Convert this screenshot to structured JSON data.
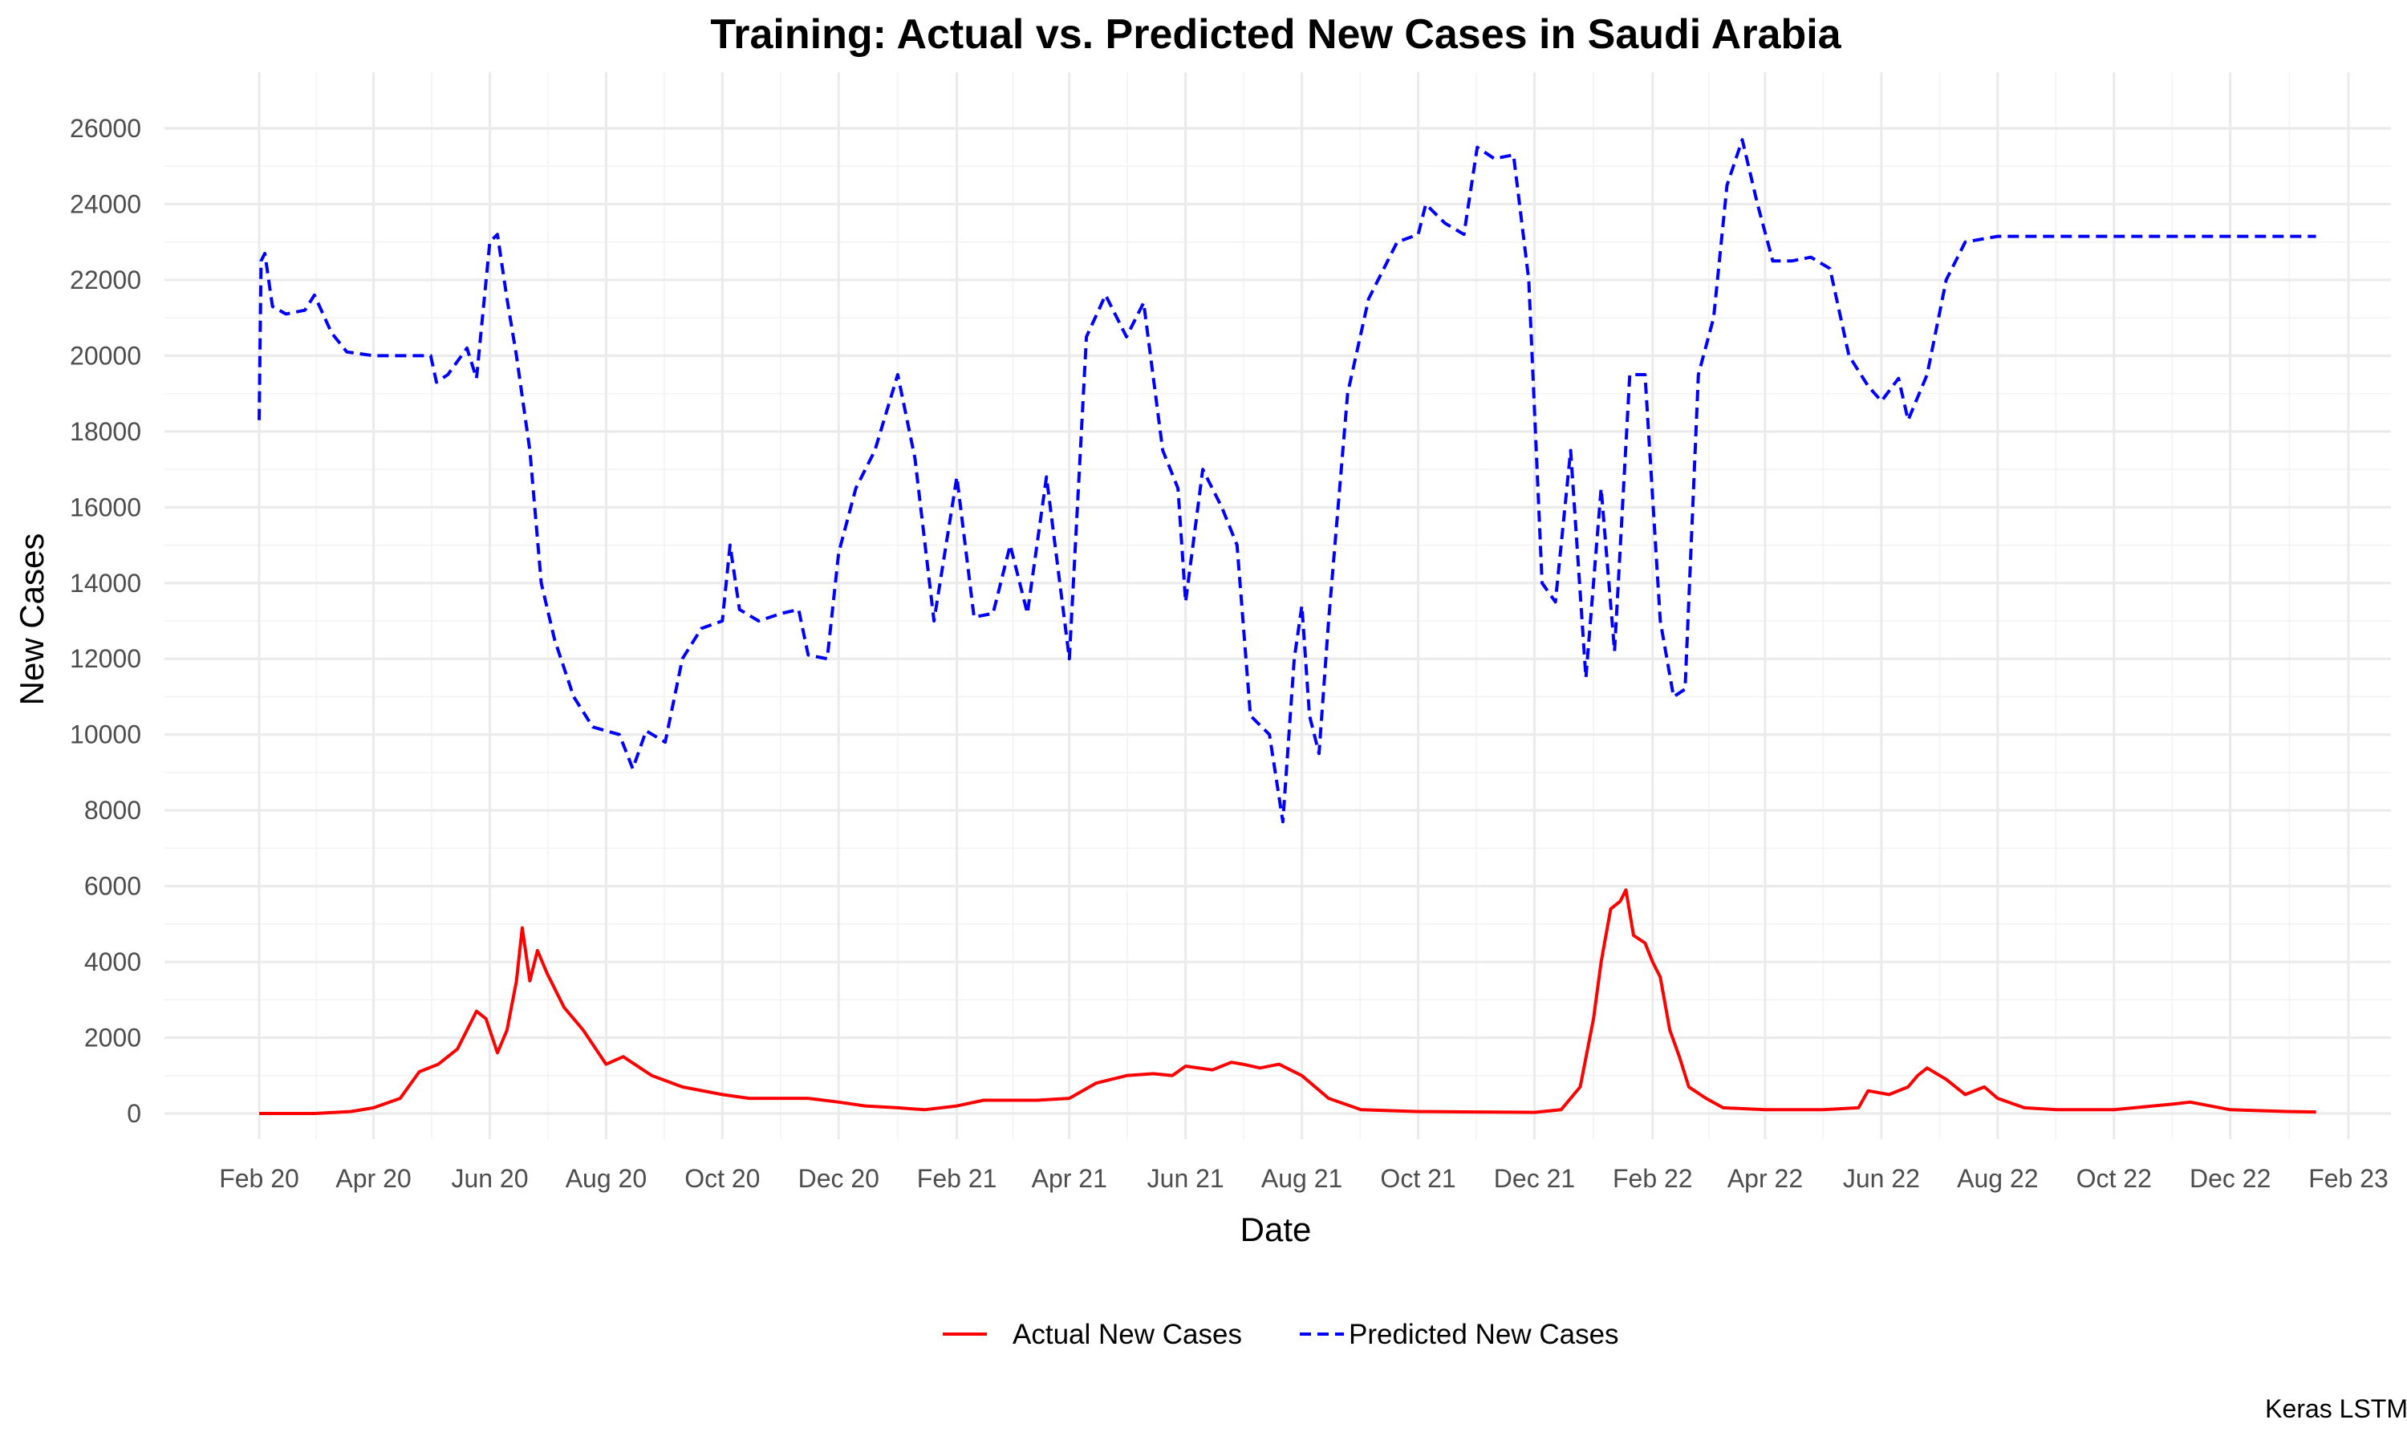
{
  "chart_data": {
    "type": "line",
    "title": "Training: Actual vs. Predicted New Cases in Saudi Arabia",
    "xlabel": "Date",
    "ylabel": "New Cases",
    "caption": "Keras LSTM",
    "xlim": [
      "2020-02-01",
      "2023-02-01"
    ],
    "ylim": [
      0,
      26000
    ],
    "x_ticks": [
      {
        "date": "2020-02-01",
        "label": "Feb 20"
      },
      {
        "date": "2020-04-01",
        "label": "Apr 20"
      },
      {
        "date": "2020-06-01",
        "label": "Jun 20"
      },
      {
        "date": "2020-08-01",
        "label": "Aug 20"
      },
      {
        "date": "2020-10-01",
        "label": "Oct 20"
      },
      {
        "date": "2020-12-01",
        "label": "Dec 20"
      },
      {
        "date": "2021-02-01",
        "label": "Feb 21"
      },
      {
        "date": "2021-04-01",
        "label": "Apr 21"
      },
      {
        "date": "2021-06-01",
        "label": "Jun 21"
      },
      {
        "date": "2021-08-01",
        "label": "Aug 21"
      },
      {
        "date": "2021-10-01",
        "label": "Oct 21"
      },
      {
        "date": "2021-12-01",
        "label": "Dec 21"
      },
      {
        "date": "2022-02-01",
        "label": "Feb 22"
      },
      {
        "date": "2022-04-01",
        "label": "Apr 22"
      },
      {
        "date": "2022-06-01",
        "label": "Jun 22"
      },
      {
        "date": "2022-08-01",
        "label": "Aug 22"
      },
      {
        "date": "2022-10-01",
        "label": "Oct 22"
      },
      {
        "date": "2022-12-01",
        "label": "Dec 22"
      },
      {
        "date": "2023-02-01",
        "label": "Feb 23"
      }
    ],
    "y_ticks": [
      0,
      2000,
      4000,
      6000,
      8000,
      10000,
      12000,
      14000,
      16000,
      18000,
      20000,
      22000,
      24000,
      26000
    ],
    "grid": true,
    "legend": {
      "position": "bottom"
    },
    "series": [
      {
        "name": "Actual New Cases",
        "color": "#ff0000",
        "style": "solid",
        "points": [
          [
            "2020-02-01",
            0
          ],
          [
            "2020-03-01",
            0
          ],
          [
            "2020-03-20",
            50
          ],
          [
            "2020-04-01",
            150
          ],
          [
            "2020-04-15",
            400
          ],
          [
            "2020-04-25",
            1100
          ],
          [
            "2020-05-05",
            1300
          ],
          [
            "2020-05-15",
            1700
          ],
          [
            "2020-05-25",
            2700
          ],
          [
            "2020-05-30",
            2500
          ],
          [
            "2020-06-05",
            1600
          ],
          [
            "2020-06-10",
            2200
          ],
          [
            "2020-06-15",
            3500
          ],
          [
            "2020-06-18",
            4900
          ],
          [
            "2020-06-22",
            3500
          ],
          [
            "2020-06-26",
            4300
          ],
          [
            "2020-07-01",
            3700
          ],
          [
            "2020-07-10",
            2800
          ],
          [
            "2020-07-20",
            2200
          ],
          [
            "2020-08-01",
            1300
          ],
          [
            "2020-08-10",
            1500
          ],
          [
            "2020-08-25",
            1000
          ],
          [
            "2020-09-10",
            700
          ],
          [
            "2020-10-01",
            500
          ],
          [
            "2020-10-15",
            400
          ],
          [
            "2020-11-01",
            400
          ],
          [
            "2020-11-15",
            400
          ],
          [
            "2020-12-01",
            300
          ],
          [
            "2020-12-15",
            200
          ],
          [
            "2021-01-01",
            150
          ],
          [
            "2021-01-15",
            100
          ],
          [
            "2021-02-01",
            200
          ],
          [
            "2021-02-15",
            350
          ],
          [
            "2021-03-01",
            350
          ],
          [
            "2021-03-15",
            350
          ],
          [
            "2021-04-01",
            400
          ],
          [
            "2021-04-15",
            800
          ],
          [
            "2021-05-01",
            1000
          ],
          [
            "2021-05-15",
            1050
          ],
          [
            "2021-05-25",
            1000
          ],
          [
            "2021-06-01",
            1250
          ],
          [
            "2021-06-15",
            1150
          ],
          [
            "2021-06-25",
            1350
          ],
          [
            "2021-07-01",
            1300
          ],
          [
            "2021-07-10",
            1200
          ],
          [
            "2021-07-20",
            1300
          ],
          [
            "2021-08-01",
            1000
          ],
          [
            "2021-08-15",
            400
          ],
          [
            "2021-09-01",
            100
          ],
          [
            "2021-10-01",
            50
          ],
          [
            "2021-11-01",
            40
          ],
          [
            "2021-12-01",
            30
          ],
          [
            "2021-12-15",
            100
          ],
          [
            "2021-12-25",
            700
          ],
          [
            "2022-01-01",
            2500
          ],
          [
            "2022-01-05",
            4000
          ],
          [
            "2022-01-10",
            5400
          ],
          [
            "2022-01-15",
            5600
          ],
          [
            "2022-01-18",
            5900
          ],
          [
            "2022-01-22",
            4700
          ],
          [
            "2022-01-28",
            4500
          ],
          [
            "2022-02-01",
            4000
          ],
          [
            "2022-02-05",
            3600
          ],
          [
            "2022-02-10",
            2200
          ],
          [
            "2022-02-15",
            1500
          ],
          [
            "2022-02-20",
            700
          ],
          [
            "2022-03-01",
            400
          ],
          [
            "2022-03-10",
            150
          ],
          [
            "2022-04-01",
            100
          ],
          [
            "2022-05-01",
            100
          ],
          [
            "2022-05-20",
            150
          ],
          [
            "2022-05-25",
            600
          ],
          [
            "2022-06-05",
            500
          ],
          [
            "2022-06-15",
            700
          ],
          [
            "2022-06-20",
            1000
          ],
          [
            "2022-06-25",
            1200
          ],
          [
            "2022-07-05",
            900
          ],
          [
            "2022-07-15",
            500
          ],
          [
            "2022-07-25",
            700
          ],
          [
            "2022-08-01",
            400
          ],
          [
            "2022-08-15",
            150
          ],
          [
            "2022-09-01",
            100
          ],
          [
            "2022-10-01",
            100
          ],
          [
            "2022-11-01",
            250
          ],
          [
            "2022-11-10",
            300
          ],
          [
            "2022-12-01",
            100
          ],
          [
            "2023-01-01",
            50
          ],
          [
            "2023-01-15",
            40
          ]
        ]
      },
      {
        "name": "Predicted New Cases",
        "color": "#0000ff",
        "style": "dashed",
        "points": [
          [
            "2020-02-01",
            18300
          ],
          [
            "2020-02-02",
            22500
          ],
          [
            "2020-02-04",
            22700
          ],
          [
            "2020-02-08",
            21300
          ],
          [
            "2020-02-15",
            21100
          ],
          [
            "2020-02-25",
            21200
          ],
          [
            "2020-03-01",
            21600
          ],
          [
            "2020-03-10",
            20600
          ],
          [
            "2020-03-18",
            20100
          ],
          [
            "2020-04-01",
            20000
          ],
          [
            "2020-05-01",
            20000
          ],
          [
            "2020-05-04",
            19300
          ],
          [
            "2020-05-10",
            19500
          ],
          [
            "2020-05-20",
            20200
          ],
          [
            "2020-05-25",
            19400
          ],
          [
            "2020-06-01",
            23000
          ],
          [
            "2020-06-05",
            23200
          ],
          [
            "2020-06-10",
            21500
          ],
          [
            "2020-06-15",
            20000
          ],
          [
            "2020-06-22",
            17500
          ],
          [
            "2020-06-28",
            14000
          ],
          [
            "2020-07-05",
            12500
          ],
          [
            "2020-07-15",
            11000
          ],
          [
            "2020-07-25",
            10200
          ],
          [
            "2020-08-01",
            10100
          ],
          [
            "2020-08-08",
            10000
          ],
          [
            "2020-08-15",
            9100
          ],
          [
            "2020-08-22",
            10100
          ],
          [
            "2020-09-01",
            9800
          ],
          [
            "2020-09-10",
            12000
          ],
          [
            "2020-09-20",
            12800
          ],
          [
            "2020-10-01",
            13000
          ],
          [
            "2020-10-05",
            15000
          ],
          [
            "2020-10-10",
            13300
          ],
          [
            "2020-10-20",
            13000
          ],
          [
            "2020-11-01",
            13200
          ],
          [
            "2020-11-10",
            13300
          ],
          [
            "2020-11-15",
            12100
          ],
          [
            "2020-11-25",
            12000
          ],
          [
            "2020-12-01",
            14800
          ],
          [
            "2020-12-10",
            16500
          ],
          [
            "2020-12-20",
            17500
          ],
          [
            "2021-01-01",
            19500
          ],
          [
            "2021-01-10",
            17300
          ],
          [
            "2021-01-20",
            13000
          ],
          [
            "2021-02-01",
            16800
          ],
          [
            "2021-02-10",
            13100
          ],
          [
            "2021-02-20",
            13200
          ],
          [
            "2021-03-01",
            15000
          ],
          [
            "2021-03-10",
            13200
          ],
          [
            "2021-03-20",
            16800
          ],
          [
            "2021-04-01",
            12000
          ],
          [
            "2021-04-10",
            20500
          ],
          [
            "2021-04-20",
            21600
          ],
          [
            "2021-05-01",
            20500
          ],
          [
            "2021-05-10",
            21400
          ],
          [
            "2021-05-20",
            17500
          ],
          [
            "2021-05-28",
            16500
          ],
          [
            "2021-06-01",
            13500
          ],
          [
            "2021-06-10",
            17000
          ],
          [
            "2021-06-20",
            16000
          ],
          [
            "2021-06-28",
            15000
          ],
          [
            "2021-07-05",
            10500
          ],
          [
            "2021-07-15",
            10000
          ],
          [
            "2021-07-22",
            7700
          ],
          [
            "2021-07-28",
            12000
          ],
          [
            "2021-08-01",
            13400
          ],
          [
            "2021-08-05",
            10500
          ],
          [
            "2021-08-10",
            9500
          ],
          [
            "2021-08-15",
            13000
          ],
          [
            "2021-08-25",
            19000
          ],
          [
            "2021-09-05",
            21500
          ],
          [
            "2021-09-20",
            23000
          ],
          [
            "2021-10-01",
            23200
          ],
          [
            "2021-10-05",
            24000
          ],
          [
            "2021-10-15",
            23500
          ],
          [
            "2021-10-25",
            23200
          ],
          [
            "2021-11-01",
            25500
          ],
          [
            "2021-11-10",
            25200
          ],
          [
            "2021-11-20",
            25300
          ],
          [
            "2021-11-28",
            22000
          ],
          [
            "2021-12-05",
            14000
          ],
          [
            "2021-12-12",
            13500
          ],
          [
            "2021-12-20",
            17500
          ],
          [
            "2021-12-28",
            11500
          ],
          [
            "2022-01-05",
            16500
          ],
          [
            "2022-01-12",
            12200
          ],
          [
            "2022-01-20",
            19500
          ],
          [
            "2022-01-28",
            19500
          ],
          [
            "2022-02-05",
            13000
          ],
          [
            "2022-02-12",
            11000
          ],
          [
            "2022-02-18",
            11200
          ],
          [
            "2022-02-25",
            19500
          ],
          [
            "2022-03-05",
            21000
          ],
          [
            "2022-03-12",
            24500
          ],
          [
            "2022-03-20",
            25700
          ],
          [
            "2022-03-28",
            24000
          ],
          [
            "2022-04-05",
            22500
          ],
          [
            "2022-04-15",
            22500
          ],
          [
            "2022-04-25",
            22600
          ],
          [
            "2022-05-05",
            22300
          ],
          [
            "2022-05-15",
            20000
          ],
          [
            "2022-05-25",
            19200
          ],
          [
            "2022-06-01",
            18800
          ],
          [
            "2022-06-10",
            19400
          ],
          [
            "2022-06-15",
            18300
          ],
          [
            "2022-06-25",
            19500
          ],
          [
            "2022-07-05",
            22000
          ],
          [
            "2022-07-15",
            23000
          ],
          [
            "2022-08-01",
            23150
          ],
          [
            "2023-01-15",
            23150
          ]
        ]
      }
    ]
  }
}
